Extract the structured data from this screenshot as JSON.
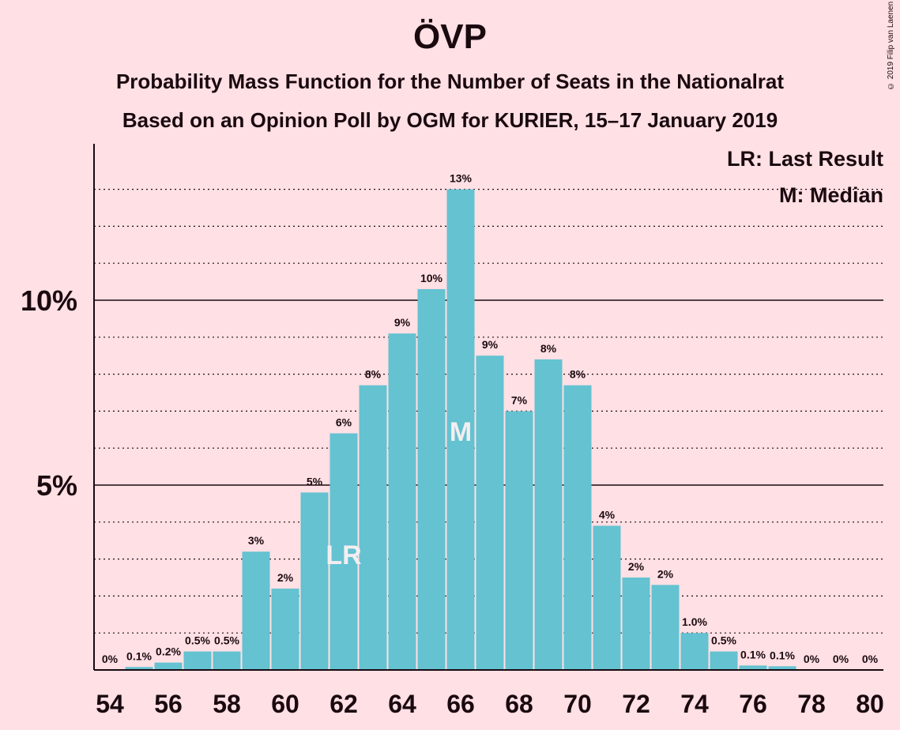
{
  "chart_data": {
    "type": "bar",
    "title": "ÖVP",
    "subtitle": "Probability Mass Function for the Number of Seats in the Nationalrat",
    "subtitle2": "Based on an Opinion Poll by OGM for KURIER, 15–17 January 2019",
    "copyright": "© 2019 Filip van Laenen",
    "legend": [
      "LR: Last Result",
      "M: Median"
    ],
    "legend_position": "top-right",
    "x": [
      54,
      55,
      56,
      57,
      58,
      59,
      60,
      61,
      62,
      63,
      64,
      65,
      66,
      67,
      68,
      69,
      70,
      71,
      72,
      73,
      74,
      75,
      76,
      77,
      78,
      79,
      80
    ],
    "values": [
      0,
      0.08,
      0.2,
      0.5,
      0.5,
      3.2,
      2.2,
      4.8,
      6.4,
      7.7,
      9.1,
      10.3,
      13.0,
      8.5,
      7.0,
      8.4,
      7.7,
      3.9,
      2.5,
      2.3,
      1.0,
      0.5,
      0.12,
      0.1,
      0,
      0,
      0
    ],
    "data_labels": [
      "0%",
      "0.1%",
      "0.2%",
      "0.5%",
      "0.5%",
      "3%",
      "2%",
      "5%",
      "6%",
      "8%",
      "9%",
      "10%",
      "13%",
      "9%",
      "7%",
      "8%",
      "8%",
      "4%",
      "2%",
      "2%",
      "1.0%",
      "0.5%",
      "0.1%",
      "0.1%",
      "0%",
      "0%",
      "0%"
    ],
    "xticks": [
      54,
      56,
      58,
      60,
      62,
      64,
      66,
      68,
      70,
      72,
      74,
      76,
      78,
      80
    ],
    "yticks": [
      5,
      10
    ],
    "ytick_labels": [
      "5%",
      "10%"
    ],
    "ylim": [
      0,
      14
    ],
    "last_result_seat": 62,
    "last_result_marker": "LR",
    "median_seat": 66,
    "median_marker": "M",
    "bar_color": "#64c2d1",
    "background_color": "#ffe0e4",
    "grid": "dotted lines at every 1%, solid at 5% and 10%"
  }
}
